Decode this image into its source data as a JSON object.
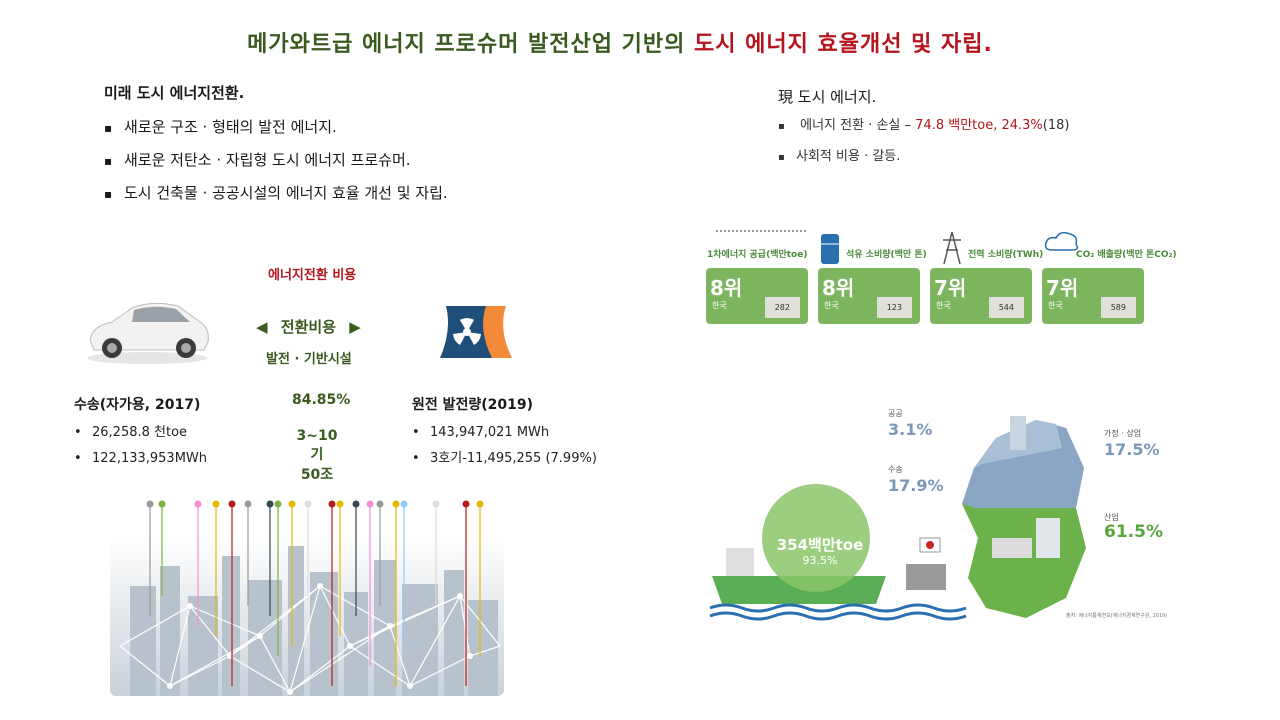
{
  "title": {
    "part1": "메가와트급 에너지 프로슈머 발전산업 기반의 ",
    "part2": "도시 에너지 효율개선 및 자립."
  },
  "future": {
    "heading": "미래 도시 에너지전환.",
    "bullets": [
      "새로운 구조 · 형태의 발전 에너지.",
      "새로운 저탄소 · 자립형 도시 에너지 프로슈머.",
      "도시 건축물 · 공공시설의 에너지 효율 개선 및 자립."
    ]
  },
  "current": {
    "heading": "現 도시 에너지.",
    "bullet1_prefix": "에너지 전환 · 손실 – ",
    "bullet1_highlight": "74.8 백만toe, 24.3%",
    "bullet1_suffix": "(18)",
    "bullet2": "사회적 비용 · 갈등."
  },
  "transition": {
    "heading": "에너지전환 비용",
    "left_arrow": "◀",
    "label": "전환비용",
    "right_arrow": "▶",
    "sublabel": "발전 · 기반시설",
    "pct": "84.85%",
    "range": "3~10기",
    "cost": "50조"
  },
  "transport": {
    "title": "수송(자가용, 2017)",
    "items": [
      "26,258.8 천toe",
      "122,133,953MWh"
    ]
  },
  "nuclear": {
    "title": "원전 발전량(2019)",
    "items": [
      "143,947,021 MWh",
      "3호기-11,495,255 (7.99%)"
    ]
  },
  "rankings": [
    {
      "label": "1차에너지 공급(백만toe)",
      "rank": "8위",
      "country": "한국",
      "value": "282",
      "icon": "factory-icon"
    },
    {
      "label": "석유 소비량(백만 톤)",
      "rank": "8위",
      "country": "한국",
      "value": "123",
      "icon": "oil-barrel-icon"
    },
    {
      "label": "전력 소비량(TWh)",
      "rank": "7위",
      "country": "한국",
      "value": "544",
      "icon": "power-tower-icon"
    },
    {
      "label": "CO₂ 배출량(백만 톤CO₂)",
      "rank": "7위",
      "country": "한국",
      "value": "589",
      "icon": "co2-cloud-icon"
    }
  ],
  "map": {
    "public_label": "공공",
    "public_pct": "3.1%",
    "transport_label": "수송",
    "transport_pct": "17.9%",
    "home_label": "가정 · 상업",
    "home_pct": "17.5%",
    "industry_label": "산업",
    "industry_pct": "61.5%",
    "import_value": "354백만toe",
    "import_pct": "93.5%",
    "source": "출처: 에너지통계연보(에너지경제연구원, 2019)"
  },
  "colors": {
    "title_green": "#3a5a1e",
    "accent_red": "#b4141e",
    "card_green": "#7cb55e",
    "map_blue": "#8aa6c4",
    "map_green": "#6cb24a"
  }
}
